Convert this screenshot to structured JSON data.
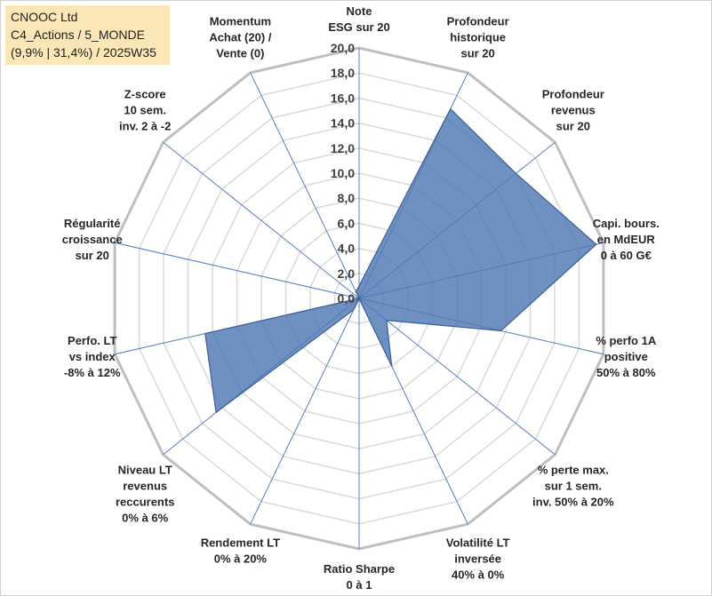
{
  "title": {
    "line1": "CNOOC Ltd",
    "line2": "C4_Actions / 5_MONDE",
    "line3": "(9,9% | 31,4%) / 2025W35"
  },
  "chart_data": {
    "type": "radar",
    "rmin": 0,
    "rmax": 20,
    "tick_step": 2,
    "ticks": [
      "0,0",
      "2,0",
      "4,0",
      "6,0",
      "8,0",
      "10,0",
      "12,0",
      "14,0",
      "16,0",
      "18,0",
      "20,0"
    ],
    "axes": [
      [
        "Note",
        "ESG sur 20"
      ],
      [
        "Profondeur",
        "historique",
        "sur 20"
      ],
      [
        "Profondeur",
        "revenus",
        "sur 20"
      ],
      [
        "Capi. bours.",
        "en MdEUR",
        "0 à 60 G€"
      ],
      [
        "% perfo 1A",
        "positive",
        "50% à 80%"
      ],
      [
        "% perte max.",
        "sur 1 sem.",
        "inv. 50% à 20%"
      ],
      [
        "Volatilité LT",
        "inversée",
        "40% à 0%"
      ],
      [
        "Ratio Sharpe",
        "0 à 1"
      ],
      [
        "Rendement LT",
        "0% à 20%"
      ],
      [
        "Niveau LT",
        "revenus",
        "reccurents",
        "0% à 6%"
      ],
      [
        "Perfo. LT",
        "vs index",
        "-8% à 12%"
      ],
      [
        "Régularité",
        "croissance",
        "sur 20"
      ],
      [
        "Z-score",
        "10 sem.",
        "inv. 2 à -2"
      ],
      [
        "Momentum",
        "Achat (20) /",
        "Vente (0)"
      ]
    ],
    "values": [
      1.0,
      16.8,
      16.0,
      19.4,
      11.6,
      2.8,
      6.0,
      0.0,
      1.0,
      14.6,
      12.6,
      0.0,
      0.0,
      0.6
    ],
    "series_color": "#4f79b3",
    "grid": true
  }
}
